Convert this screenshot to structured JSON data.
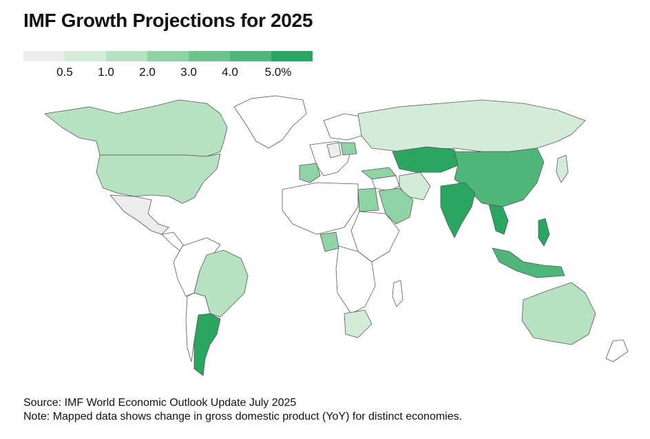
{
  "title": "IMF Growth Projections for 2025",
  "legend": {
    "colors": [
      "#ececec",
      "#d3ecd9",
      "#b6e2c2",
      "#8fd3a4",
      "#6cc48a",
      "#4db678",
      "#2aa661"
    ],
    "labels": [
      "0.5",
      "1.0",
      "2.0",
      "3.0",
      "4.0",
      "5.0%"
    ]
  },
  "no_data_color": "#ffffff",
  "regions": [
    {
      "name": "Canada",
      "bin": 2
    },
    {
      "name": "United States",
      "bin": 2
    },
    {
      "name": "Mexico",
      "bin": 0
    },
    {
      "name": "Brazil",
      "bin": 2
    },
    {
      "name": "Argentina",
      "bin": 6
    },
    {
      "name": "Russia",
      "bin": 1
    },
    {
      "name": "Kazakhstan",
      "bin": 6
    },
    {
      "name": "China",
      "bin": 5
    },
    {
      "name": "India",
      "bin": 6
    },
    {
      "name": "Saudi Arabia",
      "bin": 3
    },
    {
      "name": "Egypt",
      "bin": 3
    },
    {
      "name": "Nigeria",
      "bin": 3
    },
    {
      "name": "South Africa",
      "bin": 1
    },
    {
      "name": "Australia",
      "bin": 2
    },
    {
      "name": "Indonesia",
      "bin": 5
    },
    {
      "name": "Philippines",
      "bin": 6
    },
    {
      "name": "Vietnam",
      "bin": 6
    },
    {
      "name": "Japan",
      "bin": 1
    },
    {
      "name": "Iran",
      "bin": 1
    },
    {
      "name": "Turkey",
      "bin": 3
    },
    {
      "name": "Spain",
      "bin": 3
    },
    {
      "name": "Poland",
      "bin": 3
    },
    {
      "name": "Germany",
      "bin": 0
    }
  ],
  "footer": {
    "source": "Source: IMF World Economic Outlook Update July 2025",
    "note": "Note: Mapped data shows change in gross domestic product (YoY) for distinct economies."
  }
}
